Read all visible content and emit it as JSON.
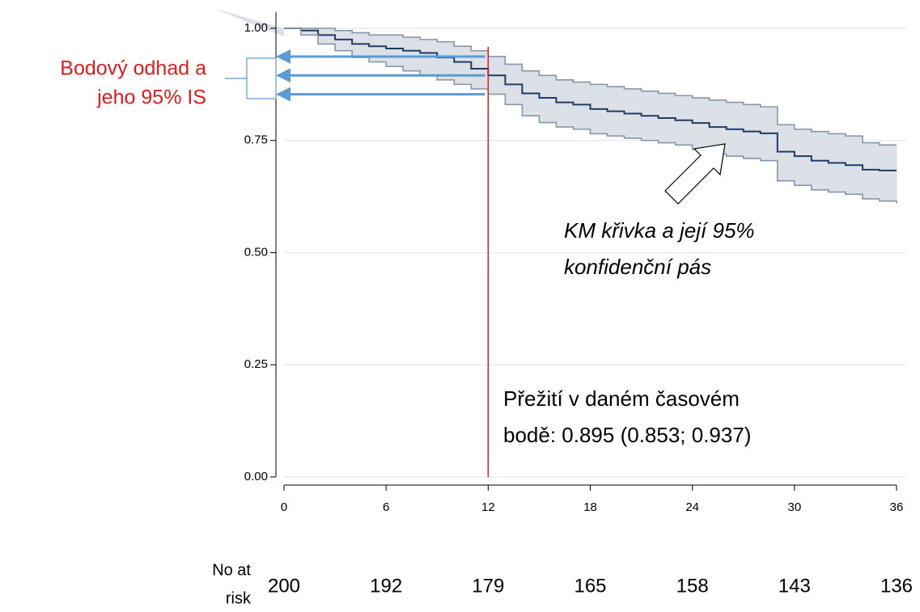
{
  "chart_data": {
    "type": "line",
    "x": [
      0,
      1,
      2,
      3,
      4,
      5,
      6,
      7,
      8,
      9,
      10,
      11,
      12,
      13,
      14,
      15,
      16,
      17,
      18,
      19,
      20,
      21,
      22,
      23,
      24,
      25,
      26,
      27,
      28,
      29,
      30,
      31,
      32,
      33,
      34,
      35,
      36
    ],
    "series": [
      {
        "name": "KM",
        "color": "#1f3c66",
        "values": [
          1.0,
          0.995,
          0.985,
          0.975,
          0.965,
          0.96,
          0.955,
          0.95,
          0.945,
          0.935,
          0.925,
          0.91,
          0.895,
          0.875,
          0.855,
          0.845,
          0.835,
          0.83,
          0.82,
          0.815,
          0.81,
          0.805,
          0.8,
          0.795,
          0.789,
          0.78,
          0.775,
          0.77,
          0.766,
          0.725,
          0.715,
          0.705,
          0.7,
          0.695,
          0.685,
          0.683,
          0.683
        ]
      },
      {
        "name": "lower",
        "color": "#8696a8",
        "values": [
          1.0,
          0.985,
          0.965,
          0.95,
          0.935,
          0.925,
          0.915,
          0.905,
          0.895,
          0.885,
          0.875,
          0.865,
          0.853,
          0.83,
          0.805,
          0.79,
          0.78,
          0.775,
          0.765,
          0.76,
          0.755,
          0.75,
          0.745,
          0.74,
          0.73,
          0.72,
          0.715,
          0.71,
          0.705,
          0.66,
          0.65,
          0.64,
          0.635,
          0.63,
          0.62,
          0.615,
          0.61
        ]
      },
      {
        "name": "upper",
        "color": "#8696a8",
        "values": [
          1.0,
          1.0,
          1.0,
          0.995,
          0.99,
          0.985,
          0.985,
          0.98,
          0.975,
          0.97,
          0.96,
          0.95,
          0.937,
          0.92,
          0.905,
          0.895,
          0.885,
          0.88,
          0.875,
          0.87,
          0.865,
          0.86,
          0.855,
          0.85,
          0.845,
          0.84,
          0.835,
          0.83,
          0.825,
          0.785,
          0.775,
          0.77,
          0.765,
          0.76,
          0.745,
          0.74,
          0.74
        ]
      }
    ],
    "band_color": "#dce1e8",
    "xlim": [
      0,
      36
    ],
    "xticks": [
      0,
      6,
      12,
      18,
      24,
      30,
      36
    ],
    "ylim": [
      0,
      1
    ],
    "yticks": [
      {
        "value": 0,
        "label": "0.00"
      },
      {
        "value": 0.25,
        "label": "0.25"
      },
      {
        "value": 0.5,
        "label": "0.50"
      },
      {
        "value": 0.75,
        "label": "0.75"
      },
      {
        "value": 1,
        "label": "1.00"
      }
    ],
    "grid": true,
    "vline": 12,
    "annotations": {
      "point_estimate": [
        "Bodový odhad a",
        "jeho 95% IS"
      ],
      "curve": [
        "KM křivka a její 95%",
        "konfidenční pás"
      ],
      "survival": [
        "Přežití v daném časovém",
        "bodě: 0.895 (0.853; 0.937)"
      ]
    },
    "risk_table": {
      "label": [
        "No at",
        "risk"
      ],
      "values": [
        200,
        192,
        179,
        165,
        158,
        143,
        136
      ]
    }
  }
}
